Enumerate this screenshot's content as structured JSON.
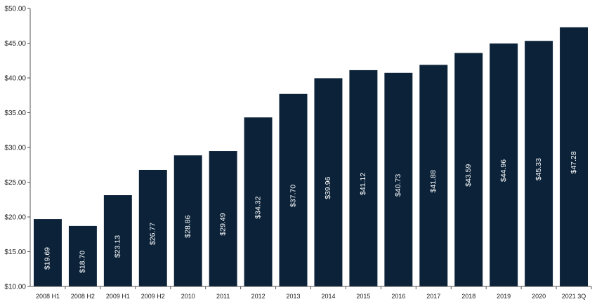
{
  "chart_data": {
    "type": "bar",
    "categories": [
      "2008 H1",
      "2008 H2",
      "2009 H1",
      "2009 H2",
      "2010",
      "2011",
      "2012",
      "2013",
      "2014",
      "2015",
      "2016",
      "2017",
      "2018",
      "2019",
      "2020",
      "2021 3Q"
    ],
    "values": [
      19.69,
      18.7,
      23.13,
      26.77,
      28.86,
      29.49,
      34.32,
      37.7,
      39.96,
      41.12,
      40.73,
      41.88,
      43.59,
      44.96,
      45.33,
      47.28
    ],
    "data_labels": [
      "$19.69",
      "$18.70",
      "$23.13",
      "$26.77",
      "$28.86",
      "$29.49",
      "$34.32",
      "$37.70",
      "$39.96",
      "$41.12",
      "$40.73",
      "$41.88",
      "$43.59",
      "$44.96",
      "$45.33",
      "$47.28"
    ],
    "y_ticks": [
      10,
      15,
      20,
      25,
      30,
      35,
      40,
      45,
      50
    ],
    "y_tick_labels": [
      "$10.00",
      "$15.00",
      "$20.00",
      "$25.00",
      "$30.00",
      "$35.00",
      "$40.00",
      "$45.00",
      "$50.00"
    ],
    "ylim": [
      10,
      50
    ],
    "grid": false,
    "legend": "none",
    "title": "",
    "xlabel": "",
    "ylabel": "",
    "bar_color": "#0b2239",
    "label_color": "#ffffff",
    "axis_color": "#555555"
  }
}
